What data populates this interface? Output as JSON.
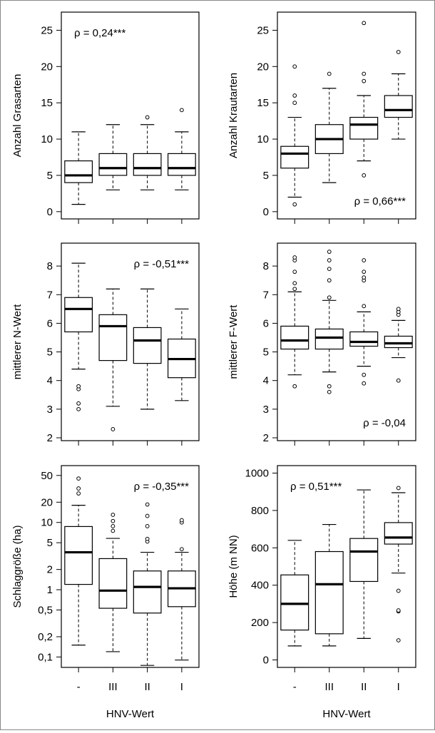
{
  "chart_data": [
    {
      "type": "box",
      "panel": "top-left",
      "ylabel": "Anzahl Grasarten",
      "scale": "linear",
      "ylim": [
        -1,
        27.5
      ],
      "yticks": [
        0,
        5,
        10,
        15,
        20,
        25
      ],
      "ytick_labels": [
        "0",
        "5",
        "10",
        "15",
        "20",
        "25"
      ],
      "categories": [
        "-",
        "III",
        "II",
        "I"
      ],
      "annotation": "ρ = 0,24***",
      "annotation_position": "top-left",
      "boxes": [
        {
          "category": "-",
          "whisker_low": 1,
          "q1": 4,
          "median": 5,
          "q3": 7,
          "whisker_high": 11,
          "outliers": []
        },
        {
          "category": "III",
          "whisker_low": 3,
          "q1": 5,
          "median": 6,
          "q3": 8,
          "whisker_high": 12,
          "outliers": []
        },
        {
          "category": "II",
          "whisker_low": 3,
          "q1": 5,
          "median": 6,
          "q3": 8,
          "whisker_high": 12,
          "outliers": [
            13
          ]
        },
        {
          "category": "I",
          "whisker_low": 3,
          "q1": 5,
          "median": 6,
          "q3": 8,
          "whisker_high": 11,
          "outliers": [
            14
          ]
        }
      ]
    },
    {
      "type": "box",
      "panel": "top-right",
      "ylabel": "Anzahl Krautarten",
      "scale": "linear",
      "ylim": [
        -1,
        27.5
      ],
      "yticks": [
        0,
        5,
        10,
        15,
        20,
        25
      ],
      "ytick_labels": [
        "0",
        "5",
        "10",
        "15",
        "20",
        "25"
      ],
      "categories": [
        "-",
        "III",
        "II",
        "I"
      ],
      "annotation": "ρ = 0,66***",
      "annotation_position": "bottom-right",
      "boxes": [
        {
          "category": "-",
          "whisker_low": 2,
          "q1": 6,
          "median": 8,
          "q3": 9,
          "whisker_high": 13,
          "outliers": [
            1,
            15,
            16,
            20
          ]
        },
        {
          "category": "III",
          "whisker_low": 4,
          "q1": 8,
          "median": 10,
          "q3": 12,
          "whisker_high": 17,
          "outliers": [
            19
          ]
        },
        {
          "category": "II",
          "whisker_low": 7,
          "q1": 10,
          "median": 12,
          "q3": 13,
          "whisker_high": 16,
          "outliers": [
            5,
            18,
            19,
            26
          ]
        },
        {
          "category": "I",
          "whisker_low": 10,
          "q1": 13,
          "median": 14,
          "q3": 16,
          "whisker_high": 19,
          "outliers": [
            22
          ]
        }
      ]
    },
    {
      "type": "box",
      "panel": "middle-left",
      "ylabel": "mittlerer N-Wert",
      "scale": "linear",
      "ylim": [
        1.9,
        8.8
      ],
      "yticks": [
        2,
        3,
        4,
        5,
        6,
        7,
        8
      ],
      "ytick_labels": [
        "2",
        "3",
        "4",
        "5",
        "6",
        "7",
        "8"
      ],
      "categories": [
        "-",
        "III",
        "II",
        "I"
      ],
      "annotation": "ρ = -0,51***",
      "annotation_position": "top-right",
      "boxes": [
        {
          "category": "-",
          "whisker_low": 4.4,
          "q1": 5.7,
          "median": 6.5,
          "q3": 6.9,
          "whisker_high": 8.1,
          "outliers": [
            3.0,
            3.2,
            3.7,
            3.8
          ]
        },
        {
          "category": "III",
          "whisker_low": 3.1,
          "q1": 4.7,
          "median": 5.9,
          "q3": 6.3,
          "whisker_high": 7.2,
          "outliers": [
            2.3
          ]
        },
        {
          "category": "II",
          "whisker_low": 3.0,
          "q1": 4.6,
          "median": 5.4,
          "q3": 5.85,
          "whisker_high": 7.2,
          "outliers": []
        },
        {
          "category": "I",
          "whisker_low": 3.3,
          "q1": 4.1,
          "median": 4.75,
          "q3": 5.45,
          "whisker_high": 6.5,
          "outliers": []
        }
      ]
    },
    {
      "type": "box",
      "panel": "middle-right",
      "ylabel": "mittlerer F-Wert",
      "scale": "linear",
      "ylim": [
        1.9,
        8.8
      ],
      "yticks": [
        2,
        3,
        4,
        5,
        6,
        7,
        8
      ],
      "ytick_labels": [
        "2",
        "3",
        "4",
        "5",
        "6",
        "7",
        "8"
      ],
      "categories": [
        "-",
        "III",
        "II",
        "I"
      ],
      "annotation": "ρ = -0,04",
      "annotation_position": "bottom-right",
      "boxes": [
        {
          "category": "-",
          "whisker_low": 4.2,
          "q1": 5.1,
          "median": 5.4,
          "q3": 5.9,
          "whisker_high": 7.1,
          "outliers": [
            3.8,
            7.2,
            7.4,
            7.8,
            8.2,
            8.3
          ]
        },
        {
          "category": "III",
          "whisker_low": 4.3,
          "q1": 5.1,
          "median": 5.5,
          "q3": 5.8,
          "whisker_high": 6.8,
          "outliers": [
            3.6,
            3.8,
            6.9,
            7.5,
            7.9,
            8.2,
            8.5
          ]
        },
        {
          "category": "II",
          "whisker_low": 4.5,
          "q1": 5.2,
          "median": 5.35,
          "q3": 5.7,
          "whisker_high": 6.4,
          "outliers": [
            3.9,
            4.2,
            6.6,
            7.5,
            7.6,
            7.8,
            8.2
          ]
        },
        {
          "category": "I",
          "whisker_low": 4.8,
          "q1": 5.15,
          "median": 5.3,
          "q3": 5.55,
          "whisker_high": 6.1,
          "outliers": [
            4.0,
            6.3,
            6.4,
            6.5
          ]
        }
      ]
    },
    {
      "type": "box",
      "panel": "bottom-left",
      "ylabel": "Schlaggröße (ha)",
      "xlabel": "HNV-Wert",
      "scale": "log",
      "ylim": [
        0.07,
        70
      ],
      "yticks": [
        0.1,
        0.2,
        0.5,
        1,
        2,
        5,
        10,
        20,
        50
      ],
      "ytick_labels": [
        "0,1",
        "0,2",
        "0,5",
        "1",
        "2",
        "5",
        "10",
        "20",
        "50"
      ],
      "categories": [
        "-",
        "III",
        "II",
        "I"
      ],
      "annotation": "ρ = -0,35***",
      "annotation_position": "top-right",
      "boxes": [
        {
          "category": "-",
          "whisker_low": 0.15,
          "q1": 1.2,
          "median": 3.6,
          "q3": 8.7,
          "whisker_high": 18,
          "outliers": [
            27,
            32,
            45
          ]
        },
        {
          "category": "III",
          "whisker_low": 0.12,
          "q1": 0.53,
          "median": 0.97,
          "q3": 2.9,
          "whisker_high": 5.8,
          "outliers": [
            7.5,
            8.8,
            10.5,
            13.0
          ]
        },
        {
          "category": "II",
          "whisker_low": 0.075,
          "q1": 0.45,
          "median": 1.1,
          "q3": 1.9,
          "whisker_high": 3.6,
          "outliers": [
            5.2,
            5.7,
            8.8,
            12.5,
            18.5
          ]
        },
        {
          "category": "I",
          "whisker_low": 0.09,
          "q1": 0.56,
          "median": 1.05,
          "q3": 1.9,
          "whisker_high": 3.6,
          "outliers": [
            4.0,
            10.0,
            10.8
          ]
        }
      ]
    },
    {
      "type": "box",
      "panel": "bottom-right",
      "ylabel": "Höhe (m NN)",
      "xlabel": "HNV-Wert",
      "scale": "linear",
      "ylim": [
        -40,
        1040
      ],
      "yticks": [
        0,
        200,
        400,
        600,
        800,
        1000
      ],
      "ytick_labels": [
        "0",
        "200",
        "400",
        "600",
        "800",
        "1000"
      ],
      "categories": [
        "-",
        "III",
        "II",
        "I"
      ],
      "annotation": "ρ = 0,51***",
      "annotation_position": "top-left",
      "boxes": [
        {
          "category": "-",
          "whisker_low": 75,
          "q1": 160,
          "median": 300,
          "q3": 455,
          "whisker_high": 640,
          "outliers": []
        },
        {
          "category": "III",
          "whisker_low": 75,
          "q1": 140,
          "median": 405,
          "q3": 580,
          "whisker_high": 725,
          "outliers": []
        },
        {
          "category": "II",
          "whisker_low": 115,
          "q1": 420,
          "median": 580,
          "q3": 650,
          "whisker_high": 910,
          "outliers": []
        },
        {
          "category": "I",
          "whisker_low": 465,
          "q1": 620,
          "median": 655,
          "q3": 735,
          "whisker_high": 895,
          "outliers": [
            105,
            260,
            265,
            370,
            920
          ]
        }
      ]
    }
  ],
  "colors": {
    "box_stroke": "#000000",
    "box_fill": "#ffffff",
    "outlier_stroke": "#000000",
    "frame": "#888888"
  }
}
